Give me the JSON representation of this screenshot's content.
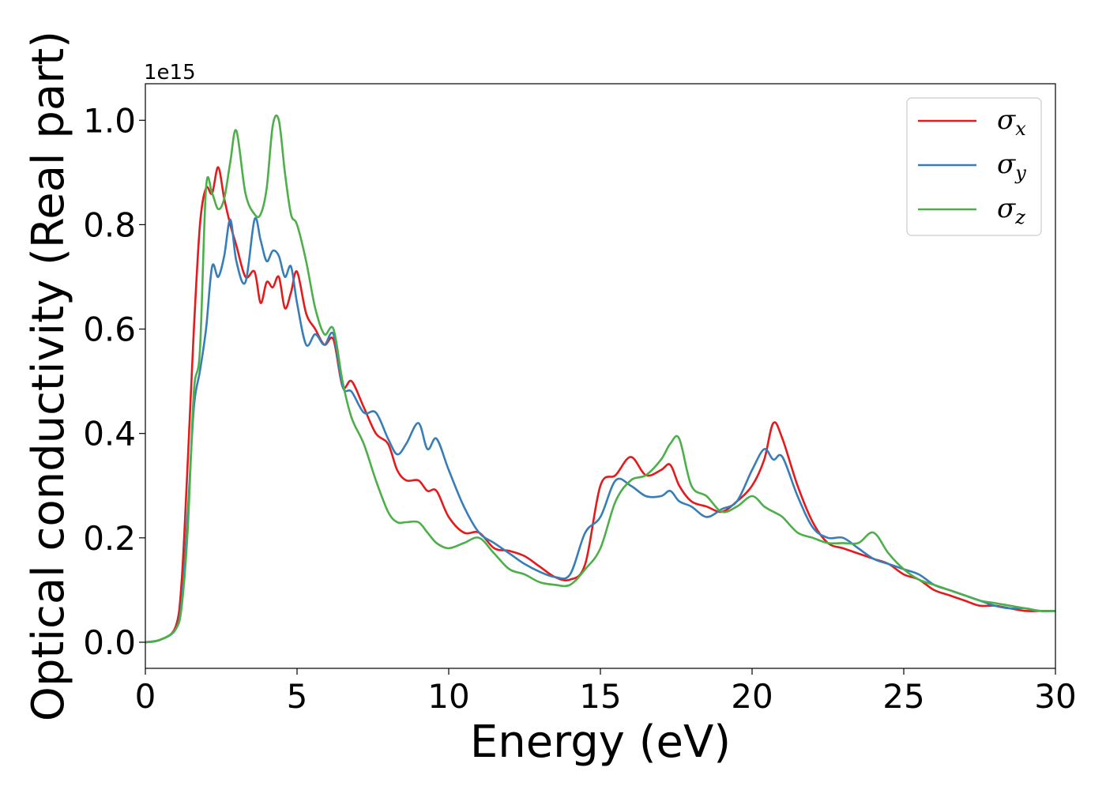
{
  "chart_data": {
    "type": "line",
    "xlabel": "Energy (eV)",
    "ylabel": "Optical conductivity (Real part)",
    "y_offset_label": "1e15",
    "xlim": [
      0,
      30
    ],
    "ylim": [
      -0.05,
      1.07
    ],
    "xticks": [
      0,
      5,
      10,
      15,
      20,
      25,
      30
    ],
    "xtick_labels": [
      "0",
      "5",
      "10",
      "15",
      "20",
      "25",
      "30"
    ],
    "yticks": [
      0.0,
      0.2,
      0.4,
      0.6,
      0.8,
      1.0
    ],
    "ytick_labels": [
      "0.0",
      "0.2",
      "0.4",
      "0.6",
      "0.8",
      "1.0"
    ],
    "grid": false,
    "legend_position": "top-right",
    "series": [
      {
        "name": "σ",
        "sub": "x",
        "color": "#e41a1c",
        "x": [
          0,
          0.5,
          1.0,
          1.2,
          1.4,
          1.6,
          1.8,
          2.0,
          2.2,
          2.4,
          2.6,
          2.8,
          3.0,
          3.3,
          3.6,
          3.8,
          4.0,
          4.2,
          4.4,
          4.6,
          4.8,
          5.0,
          5.3,
          5.6,
          5.9,
          6.2,
          6.5,
          6.8,
          7.2,
          7.6,
          8.0,
          8.3,
          8.6,
          9.0,
          9.3,
          9.6,
          10.0,
          10.5,
          11.0,
          11.5,
          12.0,
          12.5,
          13.0,
          13.5,
          14.0,
          14.5,
          15.0,
          15.5,
          16.0,
          16.5,
          17.0,
          17.3,
          17.6,
          18.0,
          18.5,
          19.0,
          19.5,
          20.0,
          20.4,
          20.7,
          21.0,
          21.5,
          22.0,
          22.5,
          23.0,
          23.5,
          24.0,
          24.5,
          25.0,
          25.5,
          26.0,
          26.5,
          27.0,
          27.5,
          28.0,
          28.5,
          29.0,
          29.5,
          30.0
        ],
        "y": [
          0,
          0.005,
          0.03,
          0.12,
          0.35,
          0.6,
          0.8,
          0.87,
          0.86,
          0.91,
          0.85,
          0.8,
          0.76,
          0.7,
          0.71,
          0.65,
          0.69,
          0.68,
          0.7,
          0.64,
          0.67,
          0.71,
          0.63,
          0.6,
          0.57,
          0.58,
          0.49,
          0.5,
          0.45,
          0.4,
          0.38,
          0.33,
          0.31,
          0.31,
          0.29,
          0.29,
          0.24,
          0.21,
          0.21,
          0.18,
          0.175,
          0.165,
          0.145,
          0.125,
          0.12,
          0.15,
          0.3,
          0.32,
          0.355,
          0.32,
          0.33,
          0.34,
          0.3,
          0.27,
          0.26,
          0.25,
          0.27,
          0.3,
          0.35,
          0.42,
          0.39,
          0.3,
          0.23,
          0.19,
          0.18,
          0.17,
          0.16,
          0.15,
          0.13,
          0.12,
          0.1,
          0.09,
          0.08,
          0.07,
          0.07,
          0.065,
          0.06,
          0.06,
          0.06
        ]
      },
      {
        "name": "σ",
        "sub": "y",
        "color": "#377eb8",
        "x": [
          0,
          0.5,
          1.0,
          1.2,
          1.4,
          1.6,
          1.8,
          2.0,
          2.2,
          2.4,
          2.6,
          2.8,
          3.0,
          3.3,
          3.6,
          3.8,
          4.0,
          4.2,
          4.4,
          4.6,
          4.8,
          5.0,
          5.3,
          5.6,
          5.9,
          6.2,
          6.5,
          6.8,
          7.2,
          7.6,
          8.0,
          8.3,
          8.6,
          9.0,
          9.3,
          9.6,
          10.0,
          10.5,
          11.0,
          11.5,
          12.0,
          12.5,
          13.0,
          13.5,
          14.0,
          14.5,
          15.0,
          15.5,
          16.0,
          16.5,
          17.0,
          17.3,
          17.6,
          18.0,
          18.5,
          19.0,
          19.5,
          20.0,
          20.4,
          20.7,
          21.0,
          21.5,
          22.0,
          22.5,
          23.0,
          23.5,
          24.0,
          24.5,
          25.0,
          25.5,
          26.0,
          26.5,
          27.0,
          27.5,
          28.0,
          28.5,
          29.0,
          29.5,
          30.0
        ],
        "y": [
          0,
          0.005,
          0.025,
          0.08,
          0.25,
          0.45,
          0.52,
          0.6,
          0.72,
          0.7,
          0.74,
          0.81,
          0.73,
          0.69,
          0.81,
          0.77,
          0.73,
          0.75,
          0.74,
          0.7,
          0.72,
          0.65,
          0.57,
          0.59,
          0.57,
          0.59,
          0.49,
          0.48,
          0.44,
          0.44,
          0.39,
          0.36,
          0.38,
          0.42,
          0.37,
          0.39,
          0.33,
          0.26,
          0.21,
          0.19,
          0.17,
          0.15,
          0.135,
          0.125,
          0.13,
          0.21,
          0.24,
          0.31,
          0.3,
          0.28,
          0.28,
          0.29,
          0.27,
          0.26,
          0.24,
          0.255,
          0.27,
          0.33,
          0.37,
          0.35,
          0.355,
          0.28,
          0.22,
          0.2,
          0.2,
          0.18,
          0.16,
          0.15,
          0.14,
          0.13,
          0.11,
          0.1,
          0.09,
          0.08,
          0.07,
          0.065,
          0.065,
          0.06,
          0.06
        ]
      },
      {
        "name": "σ",
        "sub": "z",
        "color": "#4daf4a",
        "x": [
          0,
          0.5,
          1.0,
          1.2,
          1.4,
          1.6,
          1.8,
          2.0,
          2.2,
          2.4,
          2.6,
          2.8,
          3.0,
          3.3,
          3.6,
          3.8,
          4.0,
          4.2,
          4.4,
          4.6,
          4.8,
          5.0,
          5.3,
          5.6,
          5.9,
          6.2,
          6.5,
          6.8,
          7.2,
          7.6,
          8.0,
          8.3,
          8.6,
          9.0,
          9.3,
          9.6,
          10.0,
          10.5,
          11.0,
          11.5,
          12.0,
          12.5,
          13.0,
          13.5,
          14.0,
          14.5,
          15.0,
          15.5,
          16.0,
          16.5,
          17.0,
          17.3,
          17.6,
          18.0,
          18.5,
          19.0,
          19.5,
          20.0,
          20.4,
          20.7,
          21.0,
          21.5,
          22.0,
          22.5,
          23.0,
          23.5,
          24.0,
          24.5,
          25.0,
          25.5,
          26.0,
          26.5,
          27.0,
          27.5,
          28.0,
          28.5,
          29.0,
          29.5,
          30.0
        ],
        "y": [
          0,
          0.005,
          0.025,
          0.07,
          0.22,
          0.48,
          0.56,
          0.87,
          0.86,
          0.83,
          0.85,
          0.92,
          0.98,
          0.86,
          0.82,
          0.82,
          0.87,
          0.99,
          1.0,
          0.9,
          0.82,
          0.8,
          0.73,
          0.64,
          0.59,
          0.6,
          0.5,
          0.43,
          0.38,
          0.31,
          0.25,
          0.23,
          0.23,
          0.23,
          0.21,
          0.19,
          0.18,
          0.19,
          0.2,
          0.17,
          0.14,
          0.13,
          0.115,
          0.11,
          0.11,
          0.14,
          0.18,
          0.27,
          0.31,
          0.32,
          0.35,
          0.38,
          0.39,
          0.3,
          0.28,
          0.25,
          0.26,
          0.28,
          0.26,
          0.25,
          0.24,
          0.21,
          0.2,
          0.19,
          0.19,
          0.19,
          0.21,
          0.17,
          0.14,
          0.12,
          0.11,
          0.1,
          0.09,
          0.08,
          0.075,
          0.07,
          0.065,
          0.06,
          0.06
        ]
      }
    ]
  }
}
